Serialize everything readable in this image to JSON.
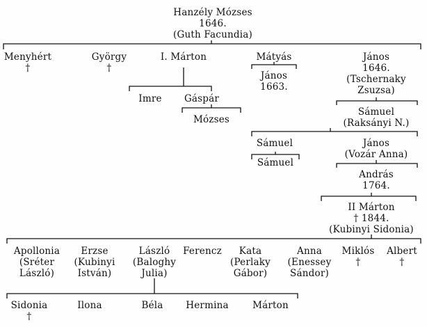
{
  "root": {
    "name": "Hanzély Mózses",
    "year": "1646.",
    "spouse": "(Guth Facundia)"
  },
  "gen1": {
    "menyhert": {
      "name": "Menyhért",
      "mark": "†"
    },
    "gyorgy": {
      "name": "György",
      "mark": "†"
    },
    "marton": {
      "name": "I. Márton"
    },
    "matyas": {
      "name": "Mátyás"
    },
    "janos": {
      "name": "János",
      "year": "1646.",
      "spouse_l1": "(Tschernaky",
      "spouse_l2": "Zsuzsa)"
    }
  },
  "marton_line": {
    "imre": {
      "name": "Imre"
    },
    "gaspar": {
      "name": "Gáspár"
    },
    "mozses": {
      "name": "Mózses"
    }
  },
  "matyas_line": {
    "janos": {
      "name": "János",
      "year": "1663."
    },
    "samuel1": {
      "name": "Sámuel"
    },
    "samuel2": {
      "name": "Sámuel"
    }
  },
  "janos_line": {
    "samuel": {
      "name": "Sámuel",
      "spouse": "(Raksányi N.)"
    },
    "janos": {
      "name": "János",
      "spouse": "(Vozár Anna)"
    },
    "andras": {
      "name": "András",
      "year": "1764."
    },
    "marton2": {
      "name": "II Márton",
      "death": "† 1844.",
      "spouse": "(Kubinyi Sidonia)"
    }
  },
  "gen_last": {
    "apollonia": {
      "name": "Apollonia",
      "spouse_l1": "(Sréter",
      "spouse_l2": "László)"
    },
    "erzse": {
      "name": "Erzse",
      "spouse_l1": "(Kubinyi",
      "spouse_l2": "István)"
    },
    "laszlo": {
      "name": "László",
      "spouse_l1": "(Baloghy",
      "spouse_l2": "Julia)"
    },
    "ferencz": {
      "name": "Ferencz"
    },
    "kata": {
      "name": "Kata",
      "spouse_l1": "(Perlaky",
      "spouse_l2": "Gábor)"
    },
    "anna": {
      "name": "Anna",
      "spouse_l1": "(Enessey",
      "spouse_l2": "Sándor)"
    },
    "miklos": {
      "name": "Miklós",
      "mark": "†"
    },
    "albert": {
      "name": "Albert",
      "mark": "†"
    }
  },
  "laszlo_children": {
    "sidonia": {
      "name": "Sidonia",
      "mark": "†"
    },
    "ilona": {
      "name": "Ilona"
    },
    "bela": {
      "name": "Béla"
    },
    "hermina": {
      "name": "Hermina"
    },
    "marton": {
      "name": "Márton"
    }
  }
}
